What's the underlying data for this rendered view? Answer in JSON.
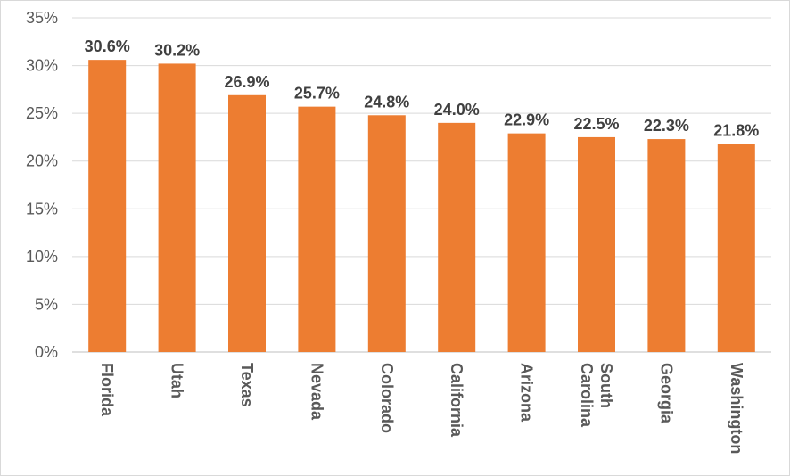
{
  "chart_data": {
    "type": "bar",
    "title": "",
    "xlabel": "",
    "ylabel": "",
    "categories": [
      "Florida",
      "Utah",
      "Texas",
      "Nevada",
      "Colorado",
      "California",
      "Arizona",
      "South Carolina",
      "Georgia",
      "Washington"
    ],
    "values": [
      30.6,
      30.2,
      26.9,
      25.7,
      24.8,
      24.0,
      22.9,
      22.5,
      22.3,
      21.8
    ],
    "data_labels": [
      "30.6%",
      "30.2%",
      "26.9%",
      "25.7%",
      "24.8%",
      "24.0%",
      "22.9%",
      "22.5%",
      "22.3%",
      "21.8%"
    ],
    "ylim": [
      0,
      35
    ],
    "yticks": [
      0,
      5,
      10,
      15,
      20,
      25,
      30,
      35
    ],
    "ytick_labels": [
      "0%",
      "5%",
      "10%",
      "15%",
      "20%",
      "25%",
      "30%",
      "35%"
    ],
    "grid": true,
    "legend": "none",
    "bar_color": "#ED7D31"
  }
}
